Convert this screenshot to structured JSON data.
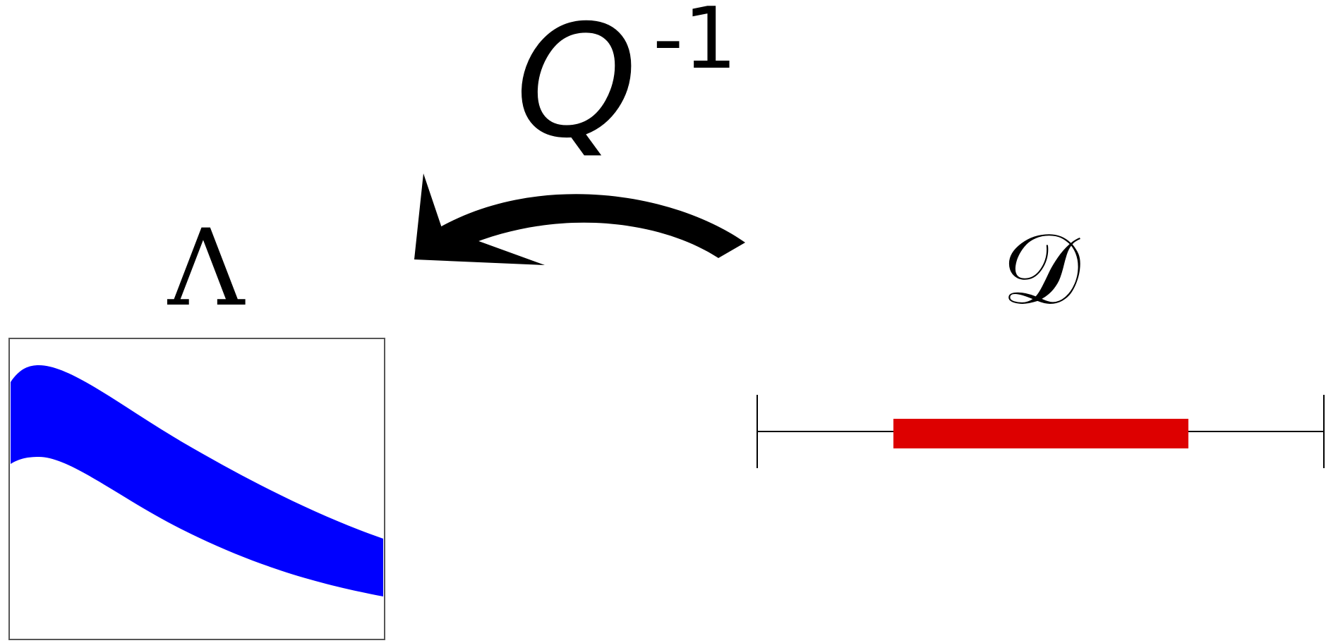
{
  "map": {
    "symbol": "Q",
    "exponent": "-1"
  },
  "left_panel": {
    "label": "Λ"
  },
  "right_panel": {
    "label": "𝒟"
  },
  "colors": {
    "band": "#0000ff",
    "interval": "#dd0000",
    "ink": "#000000",
    "frame": "#555555"
  }
}
